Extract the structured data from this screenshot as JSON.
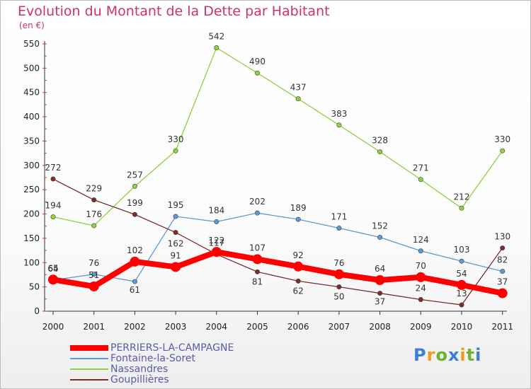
{
  "title": "Evolution du Montant de la Dette par Habitant",
  "unit_label": "(en €)",
  "logo": {
    "text": "Proxiti",
    "letters": [
      {
        "ch": "P",
        "color": "#3a7fd5"
      },
      {
        "ch": "r",
        "color": "#f29a1f"
      },
      {
        "ch": "o",
        "color": "#6ab42d"
      },
      {
        "ch": "x",
        "color": "#3a7fd5"
      },
      {
        "ch": "i",
        "color": "#f29a1f"
      },
      {
        "ch": "t",
        "color": "#6ab42d"
      },
      {
        "ch": "i",
        "color": "#3a7fd5"
      }
    ]
  },
  "chart_data": {
    "type": "line",
    "title": "Evolution du Montant de la Dette par Habitant",
    "subtitle": "(en €)",
    "xlabel": "",
    "ylabel": "",
    "x": [
      "2000",
      "2001",
      "2002",
      "2003",
      "2004",
      "2005",
      "2006",
      "2007",
      "2008",
      "2009",
      "2010",
      "2011"
    ],
    "ylim": [
      0,
      550
    ],
    "yticks": [
      0,
      50,
      100,
      150,
      200,
      250,
      300,
      350,
      400,
      450,
      500,
      550
    ],
    "grid": false,
    "legend_position": "bottom-left",
    "series": [
      {
        "name": "PERRIERS-LA-CAMPAGNE",
        "color": "#ff0000",
        "values": [
          65,
          51,
          102,
          91,
          122,
          107,
          92,
          76,
          64,
          70,
          54,
          37
        ]
      },
      {
        "name": "Fontaine-la-Soret",
        "color": "#5b9bd5",
        "values": [
          64,
          76,
          61,
          195,
          184,
          202,
          189,
          171,
          152,
          124,
          103,
          82
        ]
      },
      {
        "name": "Nassandres",
        "color": "#8fd13f",
        "values": [
          194,
          176,
          257,
          330,
          542,
          490,
          437,
          383,
          328,
          271,
          212,
          330
        ]
      },
      {
        "name": "Goupillières",
        "color": "#7b2d2d",
        "values": [
          272,
          229,
          199,
          162,
          117,
          81,
          62,
          50,
          37,
          24,
          13,
          130
        ]
      }
    ]
  }
}
